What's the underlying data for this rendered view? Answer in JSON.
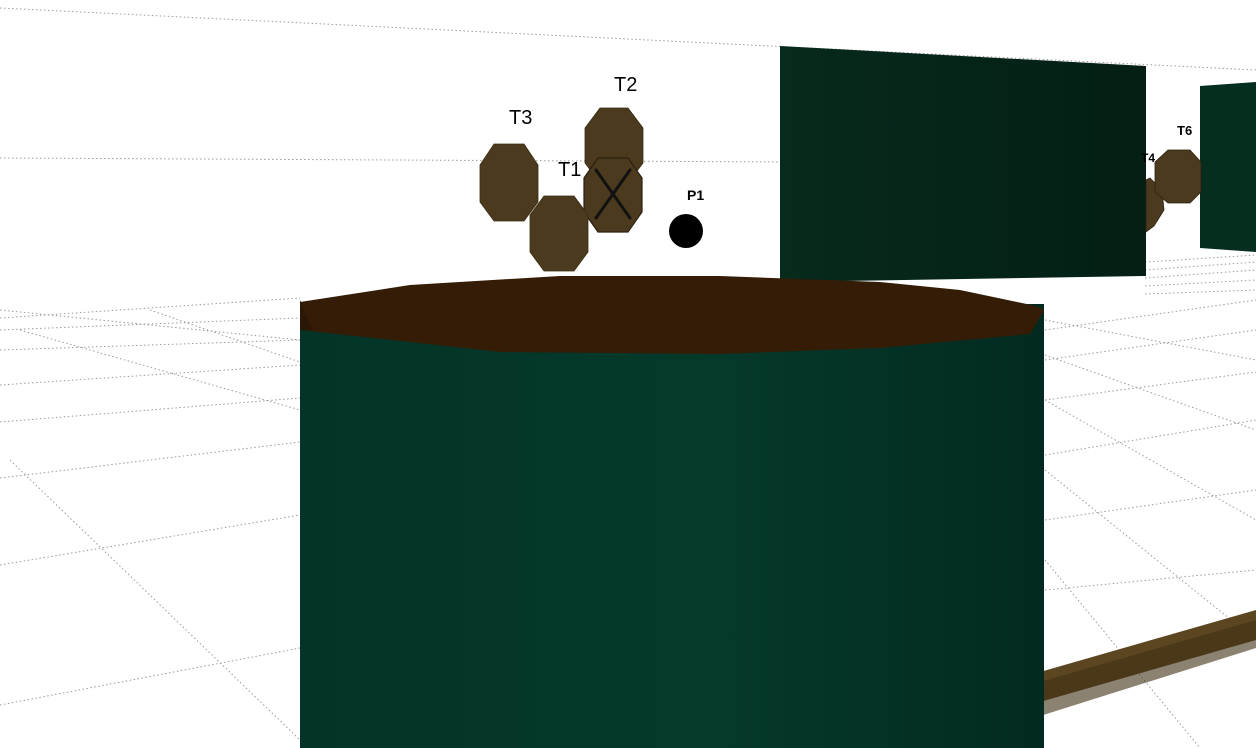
{
  "scene": {
    "view": "3d-viewport",
    "colors": {
      "background": "#ffffff",
      "grid": "#9a9a9a",
      "wall_dark": "#04271a",
      "wall_mid": "#052e20",
      "cylinder_side": "#04382a",
      "cylinder_top": "#341c06",
      "target_fill": "#4b3a1e",
      "player_fill": "#000000",
      "rod_fill": "#5c4622"
    }
  },
  "targets": [
    {
      "id": "T1",
      "label": "T1",
      "status": "hit",
      "icon": "x-mark-icon"
    },
    {
      "id": "T2",
      "label": "T2",
      "status": "active",
      "icon": "octagon-icon"
    },
    {
      "id": "T3",
      "label": "T3",
      "status": "active",
      "icon": "octagon-icon"
    },
    {
      "id": "T4",
      "label": "T4",
      "status": "active",
      "icon": "octagon-icon"
    },
    {
      "id": "T6",
      "label": "T6",
      "status": "active",
      "icon": "octagon-icon"
    }
  ],
  "players": [
    {
      "id": "P1",
      "label": "P1",
      "icon": "dot-icon"
    }
  ],
  "labels": {
    "T1": "T1",
    "T2": "T2",
    "T3": "T3",
    "T4": "T4",
    "T6": "T6",
    "P1": "P1"
  }
}
